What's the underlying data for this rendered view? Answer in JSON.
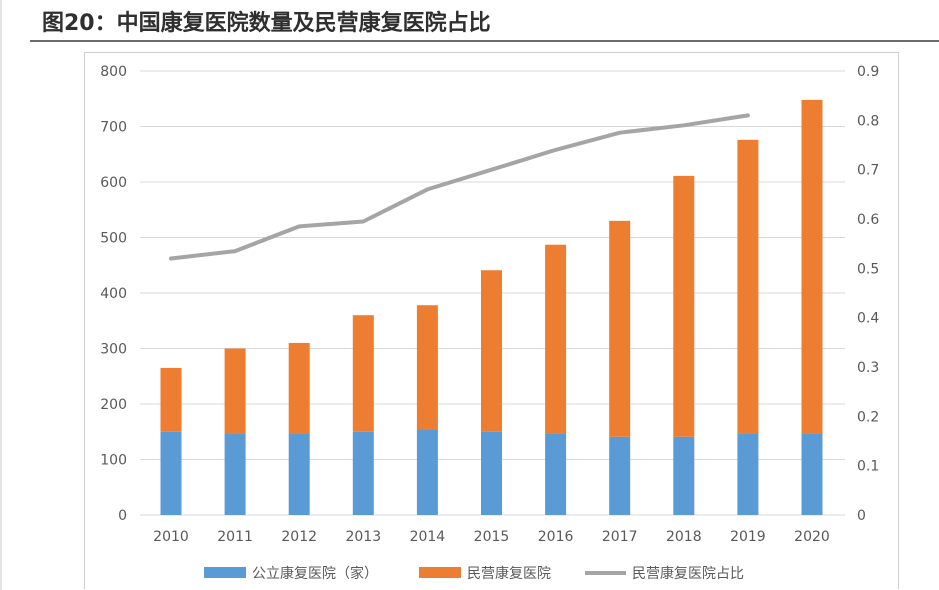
{
  "figure": {
    "title": "图20：中国康复医院数量及民营康复医院占比"
  },
  "colors": {
    "public": "#5b9bd5",
    "private": "#ed7d31",
    "ratio": "#a5a5a5",
    "grid": "#d9d9d9"
  },
  "chart_data": {
    "type": "bar",
    "stacked": true,
    "categories": [
      "2010",
      "2011",
      "2012",
      "2013",
      "2014",
      "2015",
      "2016",
      "2017",
      "2018",
      "2019",
      "2020"
    ],
    "series": [
      {
        "name": "公立康复医院（家）",
        "type": "bar",
        "axis": "left",
        "values": [
          150,
          146,
          146,
          150,
          154,
          150,
          147,
          141,
          141,
          146,
          147
        ]
      },
      {
        "name": "民营康复医院",
        "type": "bar",
        "axis": "left",
        "values": [
          115,
          154,
          164,
          210,
          224,
          291,
          340,
          389,
          470,
          530,
          601
        ]
      },
      {
        "name": "民营康复医院占比",
        "type": "line",
        "axis": "right",
        "values": [
          0.52,
          0.535,
          0.585,
          0.595,
          0.66,
          0.7,
          0.74,
          0.775,
          0.79,
          0.81,
          null
        ]
      }
    ],
    "left_axis": {
      "ylim": [
        0,
        800
      ],
      "ticks": [
        0,
        100,
        200,
        300,
        400,
        500,
        600,
        700,
        800
      ]
    },
    "right_axis": {
      "ylim": [
        0,
        0.9
      ],
      "ticks": [
        "0",
        "0.1",
        "0.2",
        "0.3",
        "0.4",
        "0.5",
        "0.6",
        "0.7",
        "0.8",
        "0.9"
      ]
    },
    "grid": true,
    "legend_placement": "bottom"
  }
}
